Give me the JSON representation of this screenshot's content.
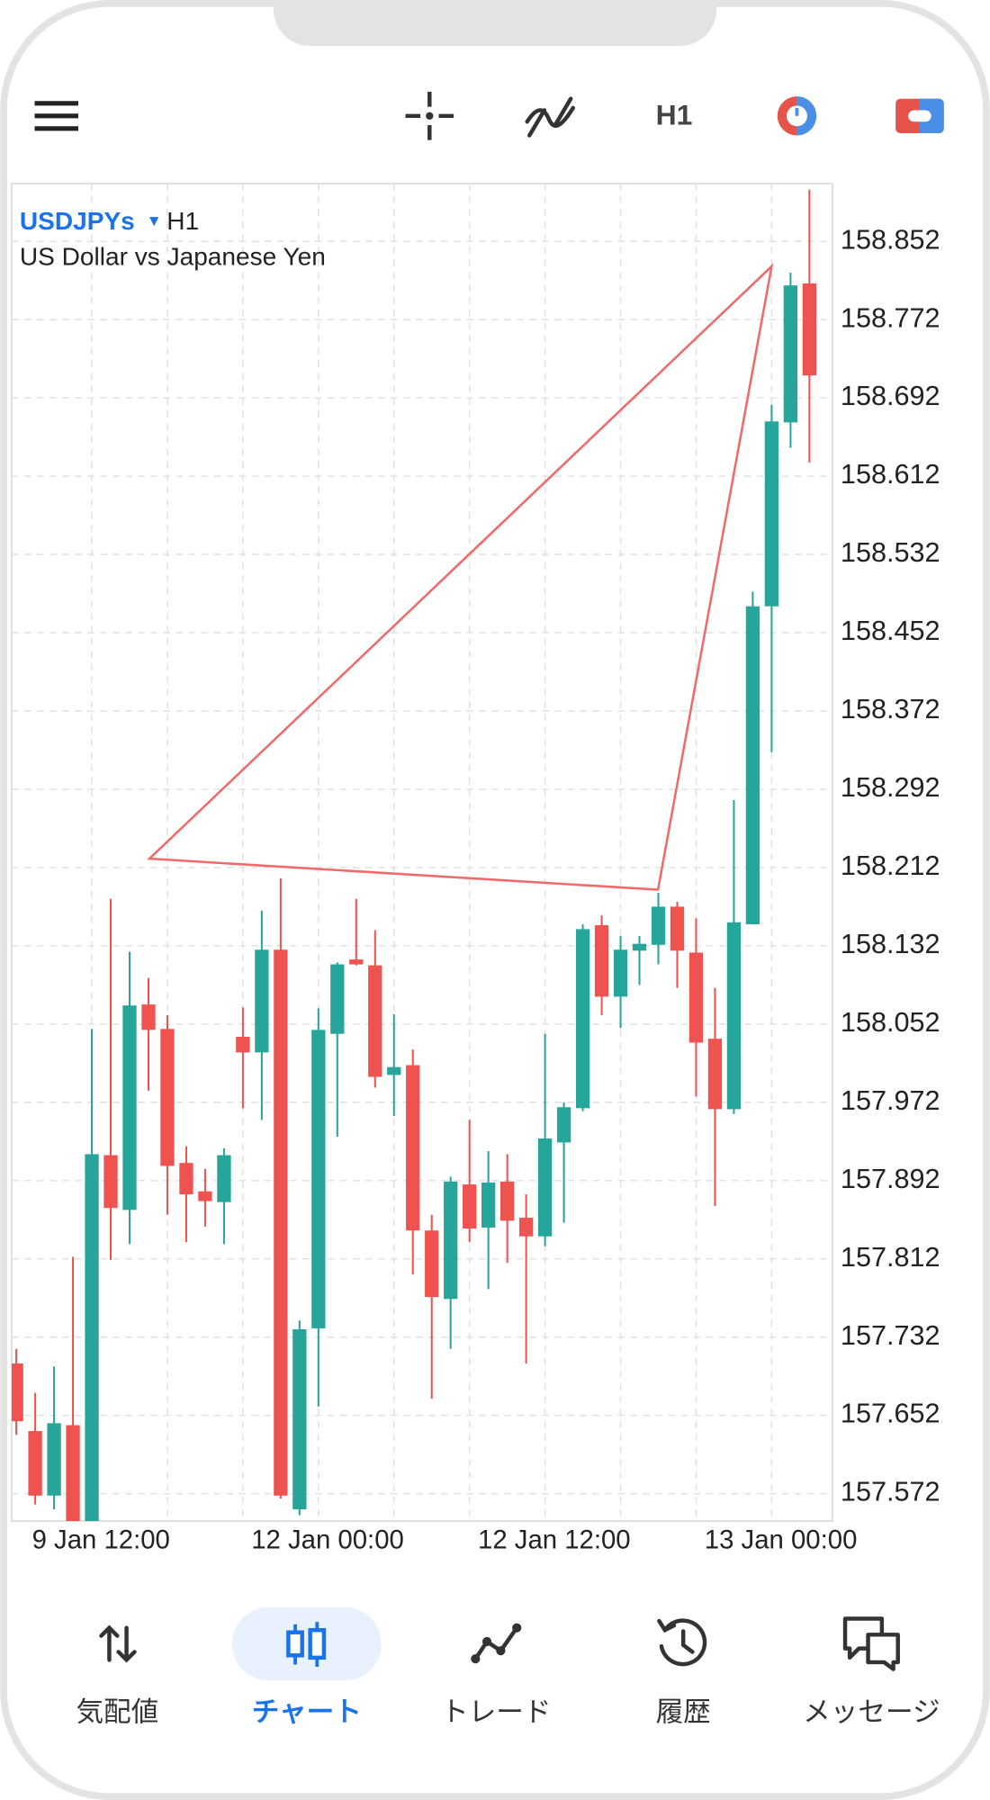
{
  "toolbar": {
    "timeframe": "H1"
  },
  "chart_data": {
    "type": "candlestick",
    "symbol": "USDJPYs",
    "timeframe": "H1",
    "description": "US Dollar vs Japanese Yen",
    "categories": [
      null,
      null,
      null,
      null,
      "9 Jan 12:00",
      null,
      null,
      null,
      null,
      null,
      null,
      null,
      null,
      null,
      null,
      null,
      "12 Jan 00:00",
      null,
      null,
      null,
      null,
      null,
      null,
      null,
      null,
      null,
      null,
      null,
      "12 Jan 12:00",
      null,
      null,
      null,
      null,
      null,
      null,
      null,
      null,
      null,
      null,
      null,
      "13 Jan 00:00",
      null,
      null
    ],
    "open": [
      157.705,
      157.636,
      157.57,
      157.642,
      157.54,
      157.918,
      157.862,
      158.072,
      158.047,
      157.91,
      157.881,
      157.87,
      158.039,
      158.023,
      158.128,
      157.556,
      157.741,
      158.042,
      158.118,
      158.112,
      158.0,
      158.01,
      157.841,
      157.771,
      157.888,
      157.844,
      157.891,
      157.854,
      157.835,
      157.931,
      157.966,
      158.153,
      158.08,
      158.127,
      158.133,
      158.172,
      158.125,
      158.037,
      157.965,
      158.154,
      158.479,
      158.667,
      158.809
    ],
    "high": [
      157.72,
      157.675,
      157.702,
      157.814,
      158.047,
      158.18,
      158.126,
      158.099,
      158.061,
      157.927,
      157.904,
      157.925,
      158.069,
      158.168,
      158.201,
      157.749,
      158.068,
      158.115,
      158.18,
      158.148,
      158.062,
      158.026,
      157.857,
      157.896,
      157.954,
      157.922,
      157.919,
      157.878,
      158.042,
      157.972,
      158.154,
      158.163,
      158.142,
      158.142,
      158.186,
      158.177,
      158.16,
      158.089,
      158.281,
      158.494,
      158.685,
      158.82,
      158.905
    ],
    "low": [
      157.632,
      157.561,
      157.556,
      157.52,
      157.52,
      157.811,
      157.827,
      157.984,
      157.857,
      157.829,
      157.845,
      157.827,
      157.966,
      157.954,
      157.567,
      157.55,
      157.661,
      157.937,
      158.112,
      157.987,
      157.958,
      157.796,
      157.669,
      157.72,
      157.829,
      157.781,
      157.808,
      157.705,
      157.825,
      157.849,
      157.963,
      158.061,
      158.048,
      158.092,
      158.113,
      158.089,
      157.978,
      157.866,
      157.96,
      158.154,
      158.33,
      158.641,
      158.626
    ],
    "close": [
      157.646,
      157.57,
      157.644,
      157.535,
      157.919,
      157.864,
      158.071,
      158.046,
      157.907,
      157.878,
      157.871,
      157.918,
      158.023,
      158.128,
      157.57,
      157.74,
      158.046,
      158.113,
      158.113,
      157.998,
      158.008,
      157.841,
      157.773,
      157.891,
      157.843,
      157.89,
      157.851,
      157.835,
      157.935,
      157.967,
      158.149,
      158.08,
      158.128,
      158.134,
      158.172,
      158.127,
      158.033,
      157.965,
      158.156,
      158.479,
      158.668,
      158.807,
      158.715
    ],
    "up_color": "#26a69a",
    "down_color": "#ef5350",
    "ylim": [
      157.544,
      158.911
    ],
    "yticks": [
      158.852,
      158.772,
      158.692,
      158.612,
      158.532,
      158.452,
      158.372,
      158.292,
      158.212,
      158.132,
      158.052,
      157.972,
      157.892,
      157.812,
      157.732,
      157.652,
      157.572
    ],
    "grid": true
  },
  "nav": {
    "items": [
      "気配値",
      "チャート",
      "トレード",
      "履歴",
      "メッセージ"
    ],
    "active": 1
  }
}
